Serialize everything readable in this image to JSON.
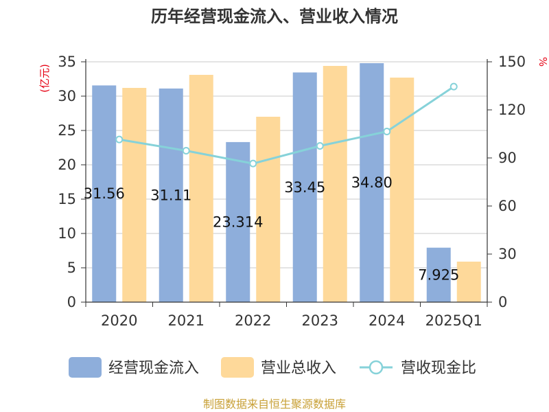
{
  "chart_data": {
    "type": "bar",
    "title": "历年经营现金流入、营业收入情况",
    "categories": [
      "2020",
      "2021",
      "2022",
      "2023",
      "2024",
      "2025Q1"
    ],
    "series": [
      {
        "name": "经营现金流入",
        "values": [
          31.56,
          31.11,
          23.31,
          33.45,
          34.8,
          7.93
        ],
        "labels": [
          "31.56",
          "31.11",
          "23.314",
          "33.45",
          "34.80",
          "7.925"
        ],
        "color": "#8eaedb",
        "axis": "left",
        "kind": "bar"
      },
      {
        "name": "营业总收入",
        "values": [
          31.2,
          33.1,
          27.0,
          34.4,
          32.7,
          5.9
        ],
        "color": "#fed99a",
        "axis": "left",
        "kind": "bar"
      },
      {
        "name": "营收现金比",
        "values": [
          101.5,
          94.5,
          86.5,
          97.5,
          106.5,
          134.5
        ],
        "color": "#86d2d9",
        "axis": "right",
        "kind": "line"
      }
    ],
    "ylabel": "(亿元)",
    "ylabel_right": "%",
    "ylim": [
      0,
      35
    ],
    "ylim_right": [
      0,
      150
    ],
    "yticks": [
      "0",
      "5",
      "10",
      "15",
      "20",
      "25",
      "30",
      "35"
    ],
    "yticks_right": [
      "0",
      "30",
      "60",
      "90",
      "120",
      "150"
    ],
    "grid": true,
    "legend_position": "bottom"
  },
  "footer": {
    "source": "制图数据来自恒生聚源数据库"
  }
}
